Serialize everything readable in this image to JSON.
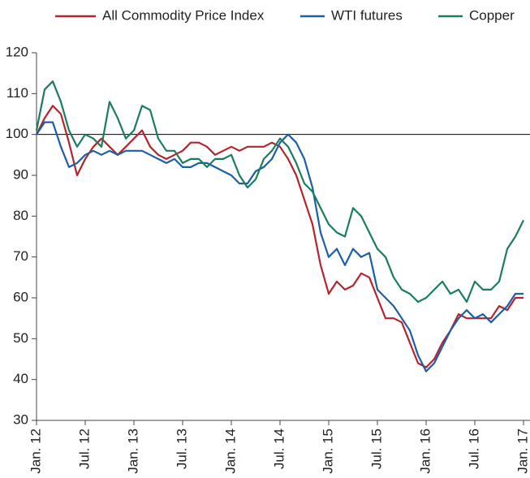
{
  "chart_data": {
    "type": "line",
    "x": [
      "2012-01",
      "2012-02",
      "2012-03",
      "2012-04",
      "2012-05",
      "2012-06",
      "2012-07",
      "2012-08",
      "2012-09",
      "2012-10",
      "2012-11",
      "2012-12",
      "2013-01",
      "2013-02",
      "2013-03",
      "2013-04",
      "2013-05",
      "2013-06",
      "2013-07",
      "2013-08",
      "2013-09",
      "2013-10",
      "2013-11",
      "2013-12",
      "2014-01",
      "2014-02",
      "2014-03",
      "2014-04",
      "2014-05",
      "2014-06",
      "2014-07",
      "2014-08",
      "2014-09",
      "2014-10",
      "2014-11",
      "2014-12",
      "2015-01",
      "2015-02",
      "2015-03",
      "2015-04",
      "2015-05",
      "2015-06",
      "2015-07",
      "2015-08",
      "2015-09",
      "2015-10",
      "2015-11",
      "2015-12",
      "2016-01",
      "2016-02",
      "2016-03",
      "2016-04",
      "2016-05",
      "2016-06",
      "2016-07",
      "2016-08",
      "2016-09",
      "2016-10",
      "2016-11",
      "2016-12",
      "2017-01"
    ],
    "series": [
      {
        "name": "All Commodity Price Index",
        "color": "#b5242e",
        "values": [
          100,
          104,
          107,
          105,
          98,
          90,
          94,
          97,
          99,
          97,
          95,
          97,
          99,
          101,
          97,
          95,
          94,
          95,
          96,
          98,
          98,
          97,
          95,
          96,
          97,
          96,
          97,
          97,
          97,
          98,
          97,
          94,
          90,
          84,
          78,
          68,
          61,
          64,
          62,
          63,
          66,
          65,
          60,
          55,
          55,
          54,
          49,
          44,
          43,
          45,
          49,
          52,
          56,
          55,
          55,
          55,
          55,
          58,
          57,
          60,
          60
        ]
      },
      {
        "name": "WTI futures",
        "color": "#1b5fa8",
        "values": [
          100,
          103,
          103,
          97,
          92,
          93,
          95,
          96,
          95,
          96,
          95,
          96,
          96,
          96,
          95,
          94,
          93,
          94,
          92,
          92,
          93,
          93,
          92,
          91,
          90,
          88,
          88,
          91,
          92,
          94,
          98,
          100,
          98,
          94,
          87,
          76,
          70,
          72,
          68,
          72,
          70,
          71,
          62,
          60,
          58,
          55,
          52,
          46,
          42,
          44,
          48,
          52,
          55,
          57,
          55,
          56,
          54,
          56,
          58,
          61,
          61
        ]
      },
      {
        "name": "Copper",
        "color": "#1a7d5e",
        "values": [
          101,
          111,
          113,
          108,
          101,
          97,
          100,
          99,
          97,
          108,
          104,
          99,
          101,
          107,
          106,
          99,
          96,
          96,
          93,
          94,
          94,
          92,
          94,
          94,
          95,
          90,
          87,
          89,
          94,
          96,
          99,
          97,
          93,
          88,
          86,
          82,
          78,
          76,
          75,
          82,
          80,
          76,
          72,
          70,
          65,
          62,
          61,
          59,
          60,
          62,
          64,
          61,
          62,
          59,
          64,
          62,
          62,
          64,
          72,
          75,
          79
        ]
      }
    ],
    "xlim": [
      "2012-01",
      "2017-01"
    ],
    "xticks": [
      {
        "value": "2012-01",
        "label": "Jan. 12"
      },
      {
        "value": "2012-07",
        "label": "Jul. 12"
      },
      {
        "value": "2013-01",
        "label": "Jan. 13"
      },
      {
        "value": "2013-07",
        "label": "Jul. 13"
      },
      {
        "value": "2014-01",
        "label": "Jan. 14"
      },
      {
        "value": "2014-07",
        "label": "Jul. 14"
      },
      {
        "value": "2015-01",
        "label": "Jan. 15"
      },
      {
        "value": "2015-07",
        "label": "Jul. 15"
      },
      {
        "value": "2016-01",
        "label": "Jan. 16"
      },
      {
        "value": "2016-07",
        "label": "Jul. 16"
      },
      {
        "value": "2017-01",
        "label": "Jan. 17"
      }
    ],
    "ylim": [
      30,
      120
    ],
    "yticks": [
      30,
      40,
      50,
      60,
      70,
      80,
      90,
      100,
      110,
      120
    ],
    "reference_line": 100,
    "legend": "top"
  }
}
